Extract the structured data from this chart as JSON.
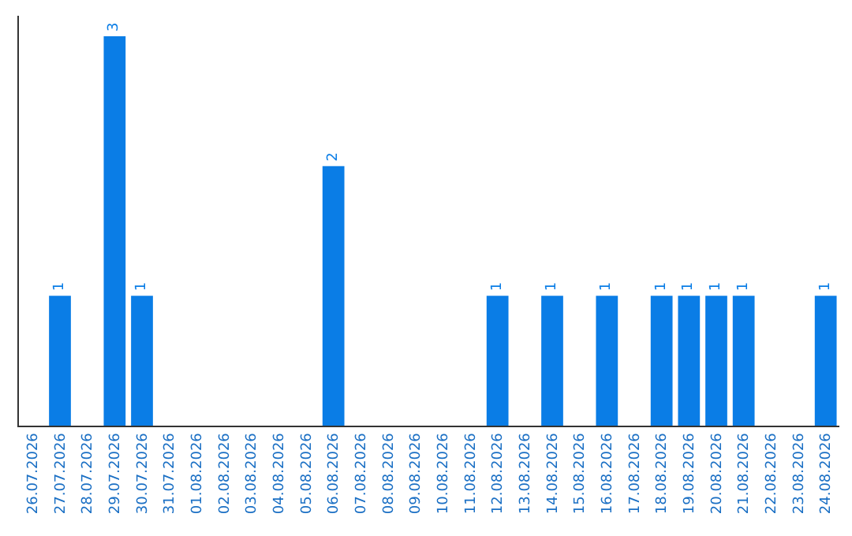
{
  "chart_data": {
    "type": "bar",
    "categories": [
      "26.07.2026",
      "27.07.2026",
      "28.07.2026",
      "29.07.2026",
      "30.07.2026",
      "31.07.2026",
      "01.08.2026",
      "02.08.2026",
      "03.08.2026",
      "04.08.2026",
      "05.08.2026",
      "06.08.2026",
      "07.08.2026",
      "08.08.2026",
      "09.08.2026",
      "10.08.2026",
      "11.08.2026",
      "12.08.2026",
      "13.08.2026",
      "14.08.2026",
      "15.08.2026",
      "16.08.2026",
      "17.08.2026",
      "18.08.2026",
      "19.08.2026",
      "20.08.2026",
      "21.08.2026",
      "22.08.2026",
      "23.08.2026",
      "24.08.2026"
    ],
    "values": [
      0,
      1,
      0,
      3,
      1,
      0,
      0,
      0,
      0,
      0,
      0,
      2,
      0,
      0,
      0,
      0,
      0,
      1,
      0,
      1,
      0,
      1,
      0,
      1,
      1,
      1,
      1,
      0,
      0,
      1
    ],
    "value_labels": [
      null,
      "1",
      null,
      "3",
      "1",
      null,
      null,
      null,
      null,
      null,
      null,
      "2",
      null,
      null,
      null,
      null,
      null,
      "1",
      null,
      "1",
      null,
      "1",
      null,
      "1",
      "1",
      "1",
      "1",
      null,
      null,
      "1"
    ],
    "color": "#0a7de6",
    "tick_labels": "x",
    "legend": false
  }
}
